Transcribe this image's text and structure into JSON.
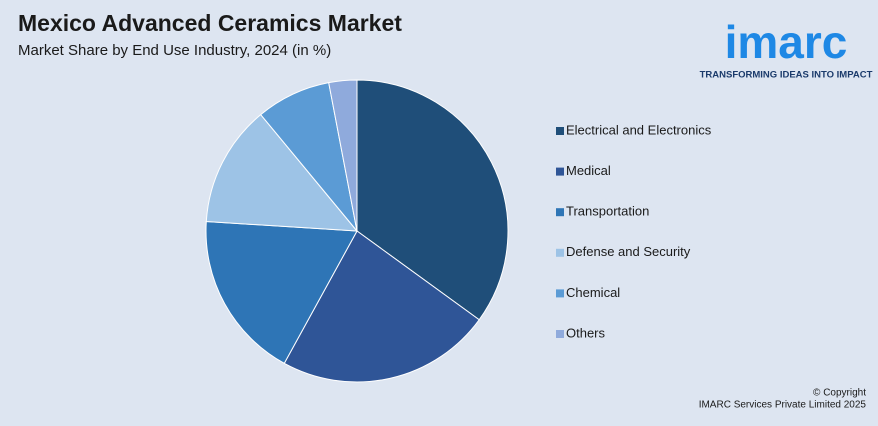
{
  "chart_data": {
    "type": "pie",
    "title": "Mexico Advanced Ceramics Market",
    "subtitle": "Market Share by End Use Industry, 2024 (in %)",
    "categories": [
      "Electrical and Electronics",
      "Medical",
      "Transportation",
      "Defense and Security",
      "Chemical",
      "Others"
    ],
    "values": [
      35,
      23,
      18,
      13,
      8,
      3
    ],
    "colors": [
      "#1f4e79",
      "#2f5597",
      "#2e75b6",
      "#9dc3e6",
      "#5b9bd5",
      "#8faadc"
    ],
    "legend": "right"
  },
  "logo": {
    "name": "imarc",
    "tagline": "TRANSFORMING IDEAS INTO IMPACT"
  },
  "footer": {
    "copyright": "© Copyright",
    "company": "IMARC Services Private Limited 2025"
  }
}
